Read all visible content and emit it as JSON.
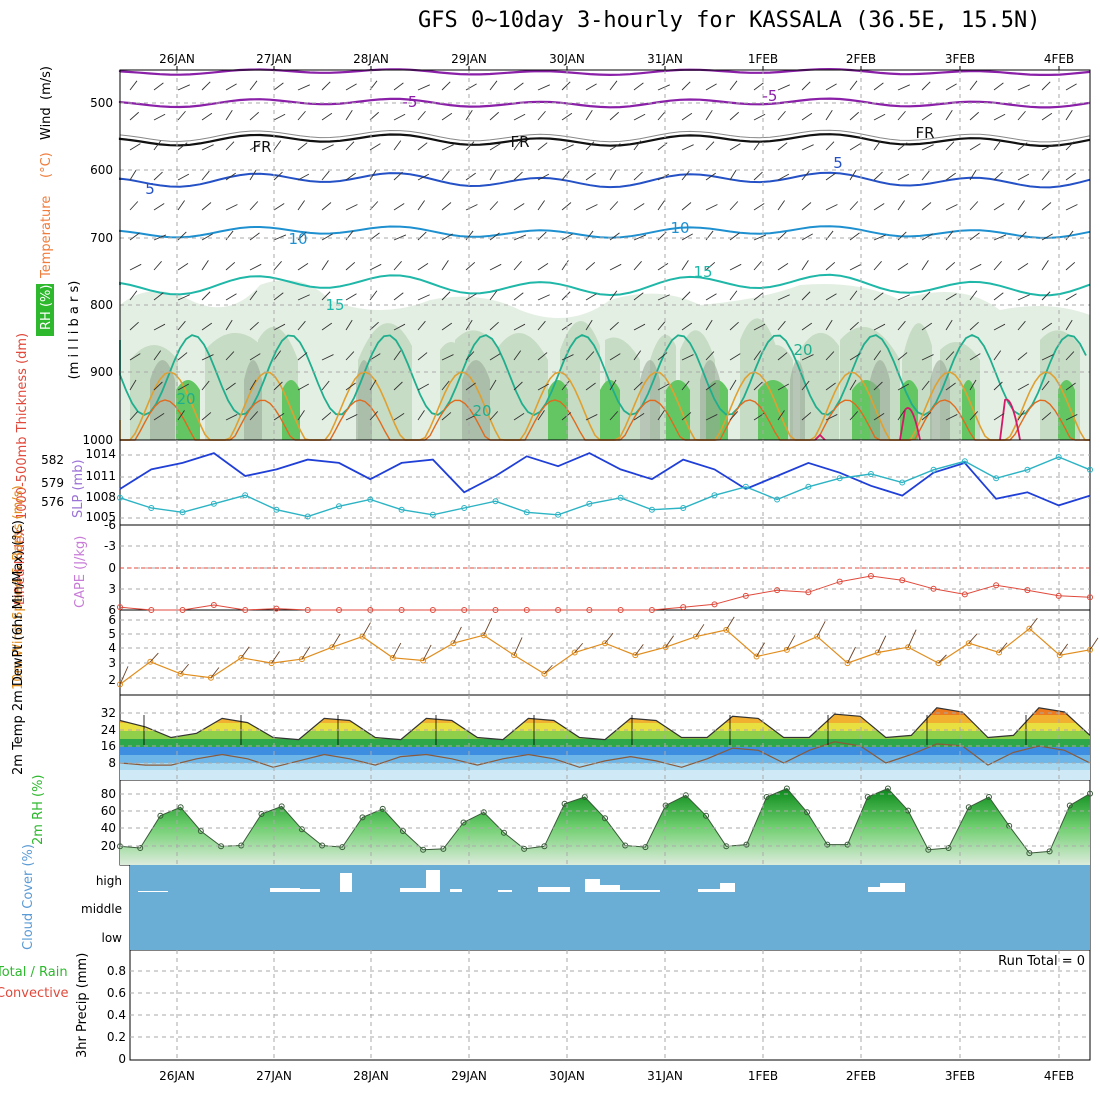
{
  "title": "GFS 0~10day 3-hourly for KASSALA (36.5E, 15.5N)",
  "colors": {
    "temperature": "#f07c3b",
    "rh": "#2db82d",
    "thickness": "#e0493b",
    "slp": "#9b72d6",
    "lifted_index": "#e0493b",
    "cape": "#c87cd8",
    "wind10m": "#e08d1e",
    "temp2m": "#000000",
    "rh2m": "#2db82d",
    "cloud": "#5b9bd5",
    "precip_total": "#2db82d",
    "precip_conv": "#e0493b"
  },
  "chart_data": [
    {
      "type": "area",
      "panel": "upper-air",
      "x_ticks": [
        "26JAN",
        "27JAN",
        "28JAN",
        "29JAN",
        "30JAN",
        "31JAN",
        "1FEB",
        "2FEB",
        "3FEB",
        "4FEB"
      ],
      "ylabel_parts": [
        "RH (%)",
        "Temperature",
        "(°C)",
        "Wind",
        "(m/s)"
      ],
      "yaxis_label": "(m i l l i b a r s)",
      "y_ticks": [
        "500",
        "600",
        "700",
        "800",
        "900",
        "1000"
      ],
      "ylim": [
        1000,
        450
      ],
      "isotherm_labels": [
        "-5",
        "-5",
        "FR",
        "FR",
        "FR",
        "5",
        "5",
        "10",
        "10",
        "15",
        "15",
        "20",
        "20",
        "20"
      ]
    },
    {
      "type": "line",
      "panel": "thickness-slp",
      "ylabel_left": "1000-500mb Thickness (dm)",
      "ylabel_right": "SLP (mb)",
      "y_ticks_thickness": [
        "582",
        "579",
        "576"
      ],
      "y_ticks_slp": [
        "1014",
        "1011",
        "1008",
        "1005"
      ],
      "series": [
        {
          "name": "SLP (mb)",
          "values": [
            1008.5,
            1011.5,
            1012.5,
            1014.0,
            1010.5,
            1011.5,
            1013.0,
            1012.5,
            1010.0,
            1012.5,
            1013.0,
            1008.0,
            1010.5,
            1013.5,
            1012.0,
            1014.0,
            1011.5,
            1010.0,
            1013.0,
            1011.5,
            1008.5,
            1010.5,
            1012.5,
            1011.0,
            1009.0,
            1007.5,
            1011.0,
            1012.5,
            1007.0,
            1008.0,
            1006.0,
            1007.5
          ]
        },
        {
          "name": "1000-500mb Thickness (dm)",
          "values": [
            577.2,
            576.0,
            575.5,
            576.5,
            577.5,
            575.8,
            575.0,
            576.2,
            577.0,
            575.8,
            575.2,
            576.0,
            576.8,
            575.5,
            575.2,
            576.5,
            577.2,
            575.8,
            576.0,
            577.5,
            578.5,
            577.0,
            578.5,
            579.5,
            580.0,
            579.0,
            580.5,
            581.5,
            579.5,
            580.5,
            582.0,
            580.5
          ]
        }
      ]
    },
    {
      "type": "line",
      "panel": "lifted-index-cape",
      "ylabel_left": "Lifted Index",
      "ylabel_right": "CAPE (J/kg)",
      "y_ticks": [
        "-6",
        "-3",
        "0",
        "3",
        "6"
      ],
      "ylim": [
        6,
        -6
      ],
      "series": [
        {
          "name": "Lifted Index",
          "values": [
            5.6,
            6.0,
            6.0,
            5.3,
            6.0,
            5.8,
            6.0,
            6.0,
            6.0,
            6.0,
            6.0,
            6.0,
            6.0,
            6.0,
            6.0,
            6.0,
            6.0,
            6.0,
            5.6,
            5.2,
            4.0,
            3.2,
            3.5,
            2.0,
            1.2,
            1.8,
            3.0,
            3.8,
            2.5,
            3.2,
            4.0,
            4.2
          ]
        }
      ]
    },
    {
      "type": "line",
      "panel": "wind10m",
      "ylabel": "10m Wind Speed & Barbs (m/s)",
      "y_ticks": [
        "6",
        "5",
        "4",
        "3",
        "2"
      ],
      "series": [
        {
          "name": "10m Wind Speed",
          "values": [
            1.4,
            3.1,
            2.2,
            1.9,
            3.4,
            3.0,
            3.3,
            4.2,
            5.0,
            3.4,
            3.2,
            4.5,
            5.1,
            3.6,
            2.2,
            3.8,
            4.5,
            3.6,
            4.2,
            5.0,
            5.5,
            3.5,
            4.0,
            5.0,
            3.0,
            3.8,
            4.2,
            3.0,
            4.5,
            3.8,
            5.6,
            3.6,
            4.0
          ]
        }
      ]
    },
    {
      "type": "area",
      "panel": "temp2m",
      "ylabel": "2m Temp 2m DewPt (6hr Min/Max) (°C)",
      "y_ticks": [
        "32",
        "24",
        "16",
        "8"
      ],
      "series": [
        {
          "name": "2m Temp",
          "values": [
            28,
            25,
            20,
            22,
            29,
            27,
            20,
            19,
            29,
            28,
            20,
            19,
            29,
            28,
            20,
            19,
            29,
            28,
            20,
            19,
            29,
            28,
            20,
            20,
            30,
            29,
            20,
            20,
            31,
            30,
            20,
            21,
            34,
            32,
            20,
            21,
            34,
            32,
            21
          ]
        },
        {
          "name": "2m DewPt",
          "values": [
            8,
            7,
            7,
            10,
            12,
            10,
            6,
            9,
            12,
            10,
            7,
            11,
            12,
            10,
            7,
            10,
            12,
            10,
            6,
            9,
            11,
            9,
            6,
            10,
            15,
            14,
            8,
            14,
            18,
            16,
            8,
            12,
            17,
            16,
            7,
            13,
            16,
            14,
            8
          ]
        }
      ]
    },
    {
      "type": "area",
      "panel": "rh2m",
      "ylabel": "2m RH (%)",
      "y_ticks": [
        "80",
        "60",
        "40",
        "20"
      ],
      "series": [
        {
          "name": "2m RH",
          "values": [
            22,
            20,
            58,
            68,
            40,
            22,
            23,
            60,
            69,
            42,
            23,
            21,
            56,
            66,
            40,
            18,
            19,
            50,
            62,
            38,
            19,
            22,
            72,
            80,
            55,
            23,
            21,
            70,
            82,
            58,
            22,
            24,
            80,
            90,
            62,
            24,
            24,
            80,
            90,
            64,
            18,
            20,
            68,
            80,
            46,
            14,
            16,
            70,
            84
          ]
        }
      ]
    },
    {
      "type": "bar",
      "panel": "cloud-cover",
      "ylabel": "Cloud Cover (%)",
      "y_ticks": [
        "high",
        "middle",
        "low"
      ]
    },
    {
      "type": "bar",
      "panel": "precip",
      "ylabel_parts": [
        "Total / Rain",
        "Convective"
      ],
      "ylabel": "3hr Precip (mm)",
      "y_ticks": [
        "0.8",
        "0.6",
        "0.4",
        "0.2",
        "0"
      ],
      "run_total_label": "Run Total = 0"
    }
  ]
}
